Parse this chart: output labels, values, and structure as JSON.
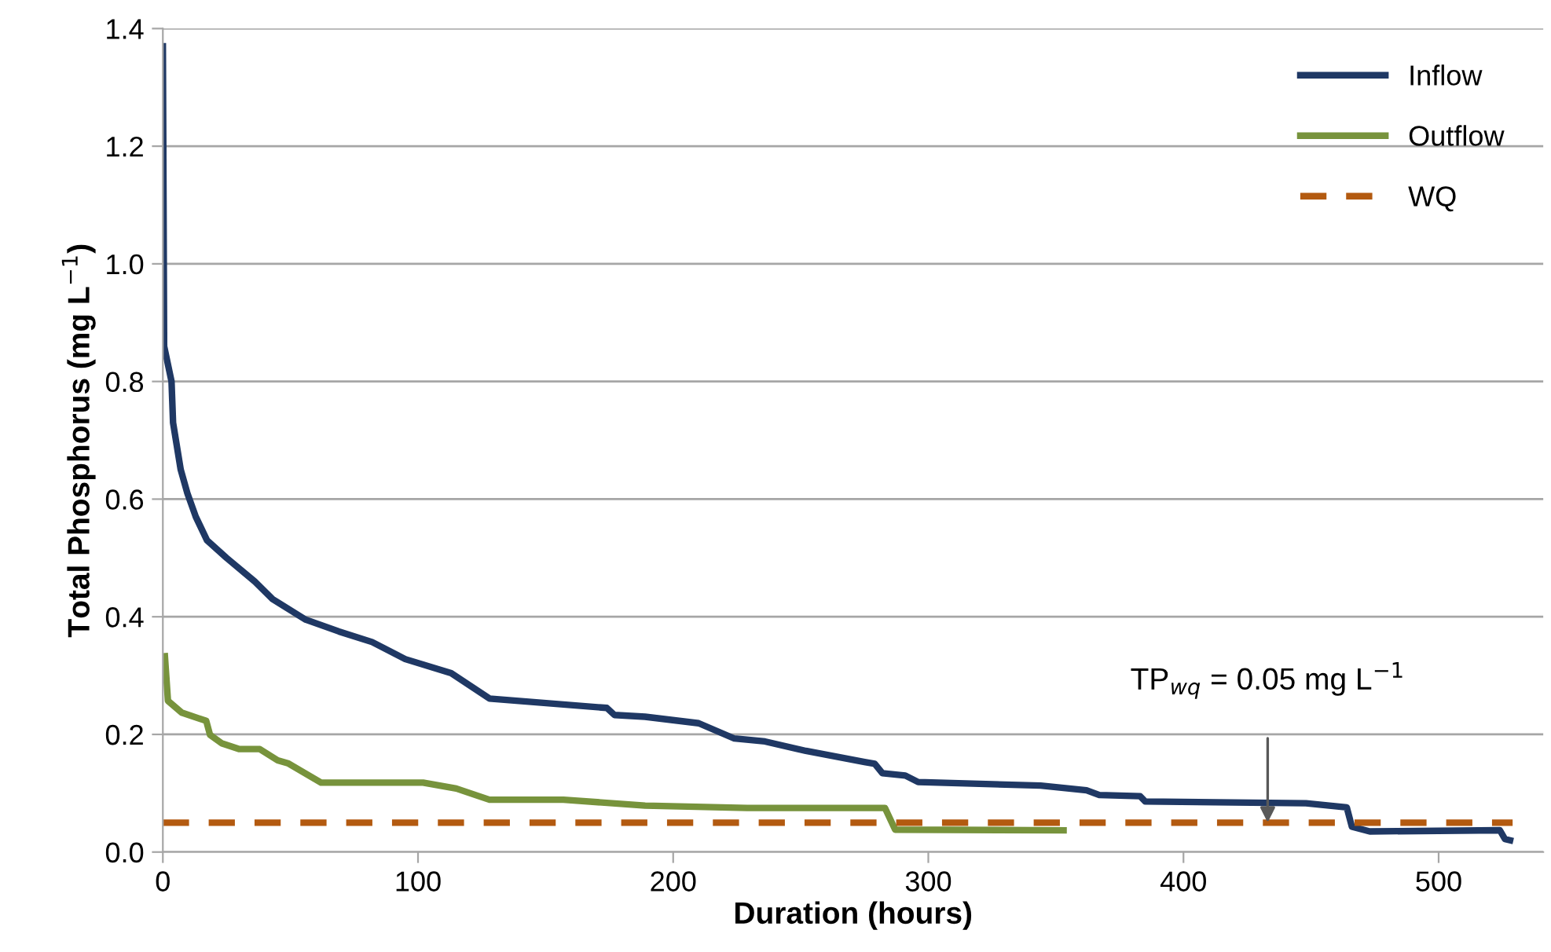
{
  "chart_data": {
    "type": "line",
    "xlabel": "Duration (hours)",
    "ylabel": "Total Phosphorus (mg L$^{−1}$)",
    "xlim": [
      0,
      541
    ],
    "xticks": [
      0,
      100,
      200,
      300,
      400,
      500
    ],
    "ylim": [
      0,
      1.4
    ],
    "yticks": [
      {
        "value": 0,
        "label": "0.0"
      },
      {
        "value": 0.2,
        "label": "0.2"
      },
      {
        "value": 0.4,
        "label": "0.4"
      },
      {
        "value": 0.6,
        "label": "0.6"
      },
      {
        "value": 0.8,
        "label": "0.8"
      },
      {
        "value": 1.0,
        "label": "1.0"
      },
      {
        "value": 1.2,
        "label": "1.2"
      },
      {
        "value": 1.4,
        "label": "1.4"
      }
    ],
    "grid": "y",
    "legend": "top right",
    "marker": "none",
    "series": [
      {
        "name": "Inflow",
        "color": "#1f3864",
        "line_style": "solid",
        "x": [
          0,
          0.5,
          3.4,
          4,
          7,
          9.6,
          12.9,
          17.3,
          25,
          36,
          43,
          56,
          69,
          82,
          95,
          113,
          128,
          174,
          177,
          189,
          210,
          224,
          236,
          252,
          275,
          279,
          282,
          291,
          296,
          344,
          362,
          367,
          383,
          385,
          448,
          464,
          466,
          473,
          524,
          526,
          528
        ],
        "values": [
          1.37,
          0.86,
          0.8,
          0.73,
          0.65,
          0.61,
          0.57,
          0.53,
          0.5,
          0.46,
          0.43,
          0.395,
          0.375,
          0.357,
          0.328,
          0.304,
          0.261,
          0.245,
          0.233,
          0.23,
          0.219,
          0.193,
          0.188,
          0.172,
          0.153,
          0.15,
          0.134,
          0.13,
          0.119,
          0.113,
          0.105,
          0.097,
          0.095,
          0.086,
          0.083,
          0.076,
          0.043,
          0.035,
          0.037,
          0.022,
          0.02
        ]
      },
      {
        "name": "Outflow",
        "color": "#77933c",
        "line_style": "solid",
        "x": [
          0.8,
          2,
          7.4,
          17,
          18.5,
          23,
          30,
          38,
          45,
          49,
          62,
          102,
          115,
          128,
          157,
          189,
          229,
          283,
          287,
          353
        ],
        "values": [
          0.333,
          0.257,
          0.237,
          0.223,
          0.199,
          0.185,
          0.175,
          0.175,
          0.156,
          0.151,
          0.118,
          0.118,
          0.108,
          0.089,
          0.089,
          0.079,
          0.075,
          0.075,
          0.038,
          0.037
        ]
      },
      {
        "name": "WQ",
        "color": "#b35a10",
        "line_style": "dashed",
        "x": [
          0,
          529
        ],
        "values": [
          0.05,
          0.05
        ]
      }
    ],
    "annotations": [
      {
        "text": "TP$_{wq}$ = 0.05 mg L$^{−1}$",
        "x": 433,
        "y": 0.05
      }
    ]
  }
}
